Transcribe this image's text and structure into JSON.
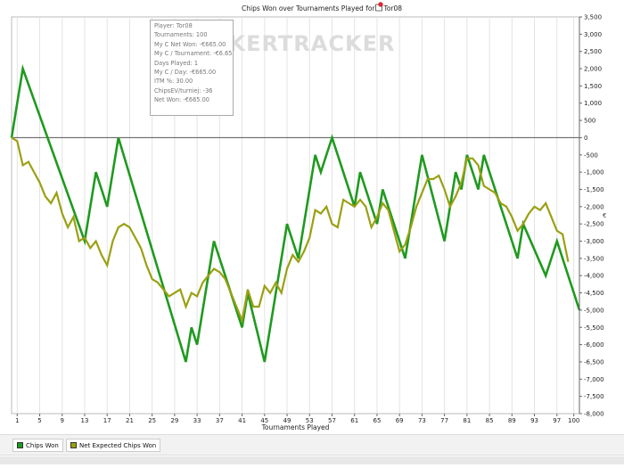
{
  "chart_data": {
    "type": "line",
    "title": "Chips Won over Tournaments Played for ",
    "title_player": "Tor08",
    "player_icon": "poker-chips-icon",
    "xlabel": "Tournaments Played",
    "ylabel": "",
    "y_axis_side": "right",
    "y_axis_marker": "€",
    "watermark": "POKERTRACKER",
    "xlim": [
      0,
      101
    ],
    "ylim": [
      -8000,
      3500
    ],
    "x_ticks": [
      1,
      5,
      9,
      13,
      17,
      21,
      25,
      29,
      33,
      37,
      41,
      45,
      49,
      53,
      57,
      61,
      65,
      69,
      73,
      77,
      81,
      85,
      89,
      93,
      97,
      100
    ],
    "x_tick_labels": [
      "1",
      "5",
      "9",
      "13",
      "17",
      "21",
      "25",
      "29",
      "33",
      "37",
      "41",
      "45",
      "49",
      "53",
      "57",
      "61",
      "65",
      "69",
      "73",
      "77",
      "81",
      "85",
      "89",
      "93",
      "97",
      "100"
    ],
    "y_ticks": [
      3500,
      3000,
      2500,
      2000,
      1500,
      1000,
      500,
      0,
      -500,
      -1000,
      -1500,
      -2000,
      -2500,
      -3000,
      -3500,
      -4000,
      -4500,
      -5000,
      -5500,
      -6000,
      -6500,
      -7000,
      -7500,
      -8000
    ],
    "y_tick_labels": [
      "3,500",
      "3,000",
      "2,500",
      "2,000",
      "1,500",
      "1,000",
      "500",
      "0",
      "-500",
      "-1,000",
      "-1,500",
      "-2,000",
      "-2,500",
      "-3,000",
      "-3,500",
      "-4,000",
      "-4,500",
      "-5,000",
      "-5,500",
      "-6,000",
      "-6,500",
      "-7,000",
      "-7,500",
      "-8,000"
    ],
    "grid": "vertical",
    "legend_position": "bottom-left",
    "series": [
      {
        "name": "Chips Won",
        "color": "#1f9a1f",
        "points": [
          [
            0,
            0
          ],
          [
            2,
            2000
          ],
          [
            13,
            -3000
          ],
          [
            15,
            -1000
          ],
          [
            17,
            -2000
          ],
          [
            19,
            0
          ],
          [
            31,
            -6500
          ],
          [
            32,
            -5500
          ],
          [
            33,
            -6000
          ],
          [
            36,
            -3000
          ],
          [
            41,
            -5500
          ],
          [
            42,
            -4500
          ],
          [
            45,
            -6500
          ],
          [
            49,
            -2500
          ],
          [
            51,
            -3500
          ],
          [
            54,
            -500
          ],
          [
            55,
            -1000
          ],
          [
            57,
            0
          ],
          [
            61,
            -2000
          ],
          [
            62,
            -1000
          ],
          [
            65,
            -2500
          ],
          [
            66,
            -1500
          ],
          [
            70,
            -3500
          ],
          [
            73,
            -500
          ],
          [
            77,
            -3000
          ],
          [
            79,
            -1000
          ],
          [
            80,
            -1500
          ],
          [
            81,
            -500
          ],
          [
            83,
            -1500
          ],
          [
            84,
            -500
          ],
          [
            90,
            -3500
          ],
          [
            91,
            -2500
          ],
          [
            95,
            -4000
          ],
          [
            97,
            -3000
          ],
          [
            101,
            -5000
          ]
        ]
      },
      {
        "name": "Net Expected Chips Won",
        "color": "#9aa012",
        "points": [
          [
            0,
            0
          ],
          [
            1,
            -100
          ],
          [
            2,
            -800
          ],
          [
            3,
            -700
          ],
          [
            4,
            -1000
          ],
          [
            5,
            -1300
          ],
          [
            6,
            -1700
          ],
          [
            7,
            -1900
          ],
          [
            8,
            -1600
          ],
          [
            9,
            -2200
          ],
          [
            10,
            -2600
          ],
          [
            11,
            -2300
          ],
          [
            12,
            -3000
          ],
          [
            13,
            -2900
          ],
          [
            14,
            -3200
          ],
          [
            15,
            -3000
          ],
          [
            16,
            -3400
          ],
          [
            17,
            -3700
          ],
          [
            18,
            -3000
          ],
          [
            19,
            -2600
          ],
          [
            20,
            -2500
          ],
          [
            21,
            -2600
          ],
          [
            22,
            -2900
          ],
          [
            23,
            -3200
          ],
          [
            24,
            -3700
          ],
          [
            25,
            -4100
          ],
          [
            26,
            -4200
          ],
          [
            27,
            -4400
          ],
          [
            28,
            -4600
          ],
          [
            29,
            -4500
          ],
          [
            30,
            -4400
          ],
          [
            31,
            -4900
          ],
          [
            32,
            -4500
          ],
          [
            33,
            -4600
          ],
          [
            34,
            -4200
          ],
          [
            35,
            -4000
          ],
          [
            36,
            -3800
          ],
          [
            37,
            -3900
          ],
          [
            38,
            -4100
          ],
          [
            39,
            -4500
          ],
          [
            40,
            -4900
          ],
          [
            41,
            -5300
          ],
          [
            42,
            -4400
          ],
          [
            43,
            -4900
          ],
          [
            44,
            -4900
          ],
          [
            45,
            -4300
          ],
          [
            46,
            -4500
          ],
          [
            47,
            -4200
          ],
          [
            48,
            -4500
          ],
          [
            49,
            -3800
          ],
          [
            50,
            -3400
          ],
          [
            51,
            -3600
          ],
          [
            52,
            -3300
          ],
          [
            53,
            -2900
          ],
          [
            54,
            -2100
          ],
          [
            55,
            -2200
          ],
          [
            56,
            -2000
          ],
          [
            57,
            -2500
          ],
          [
            58,
            -2600
          ],
          [
            59,
            -1800
          ],
          [
            60,
            -1900
          ],
          [
            61,
            -2000
          ],
          [
            62,
            -1800
          ],
          [
            63,
            -2000
          ],
          [
            64,
            -2600
          ],
          [
            65,
            -2300
          ],
          [
            66,
            -1900
          ],
          [
            67,
            -2100
          ],
          [
            68,
            -2700
          ],
          [
            69,
            -3300
          ],
          [
            70,
            -3100
          ],
          [
            71,
            -2600
          ],
          [
            72,
            -2000
          ],
          [
            73,
            -1600
          ],
          [
            74,
            -1200
          ],
          [
            75,
            -1200
          ],
          [
            76,
            -1100
          ],
          [
            77,
            -1500
          ],
          [
            78,
            -2000
          ],
          [
            79,
            -1700
          ],
          [
            80,
            -1300
          ],
          [
            81,
            -600
          ],
          [
            82,
            -600
          ],
          [
            83,
            -800
          ],
          [
            84,
            -1400
          ],
          [
            85,
            -1500
          ],
          [
            86,
            -1600
          ],
          [
            87,
            -1900
          ],
          [
            88,
            -2000
          ],
          [
            89,
            -2300
          ],
          [
            90,
            -2700
          ],
          [
            91,
            -2500
          ],
          [
            92,
            -2200
          ],
          [
            93,
            -2000
          ],
          [
            94,
            -2100
          ],
          [
            95,
            -1900
          ],
          [
            96,
            -2300
          ],
          [
            97,
            -2700
          ],
          [
            98,
            -2800
          ],
          [
            99,
            -3600
          ]
        ]
      }
    ],
    "tooltip": [
      "Player: Tor08",
      "Tournaments: 100",
      "My C Net Won: -€665.00",
      "My C / Tournament: -€6.65",
      "Days Played: 1",
      "My C / Day: -€665.00",
      "ITM %: 30.00",
      "ChipsEV/turniej: -36",
      "Net Won: -€665.00"
    ]
  }
}
